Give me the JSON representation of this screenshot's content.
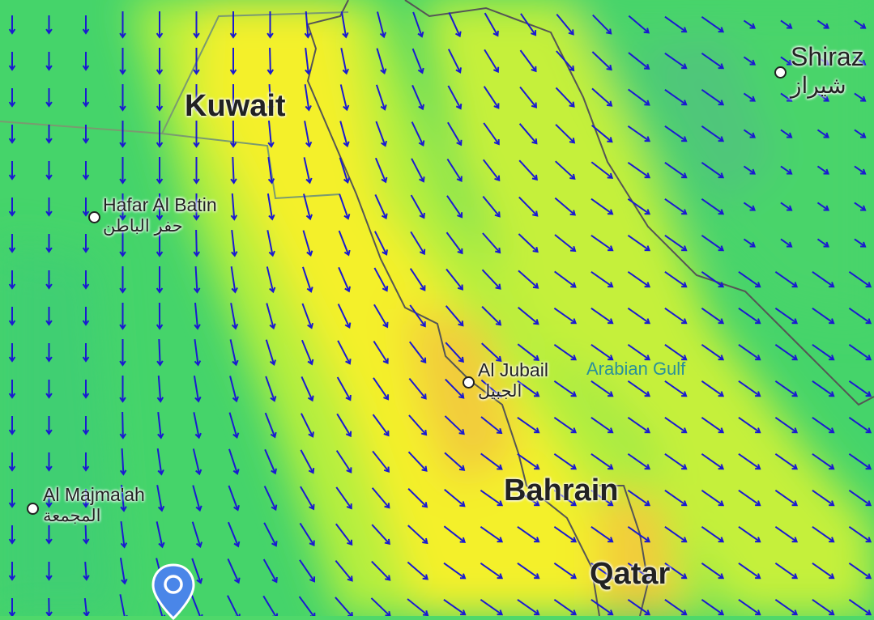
{
  "map": {
    "layer": "wind",
    "colors": {
      "low": "#3fd66a",
      "mid": "#b8f03a",
      "high": "#f6f02c",
      "peak": "#f2c53a",
      "arrow": "#1a1ad0",
      "border": "#555555"
    },
    "countries": [
      {
        "name": "Kuwait"
      },
      {
        "name": "Bahrain"
      },
      {
        "name": "Qatar"
      }
    ],
    "cities": [
      {
        "name": "Shiraz",
        "name_ar": "شيراز"
      },
      {
        "name": "Hafar Al Batin",
        "name_ar": "حفر الباطن"
      },
      {
        "name": "Al Jubail",
        "name_ar": "الجبيل"
      },
      {
        "name": "Al Majma'ah",
        "name_ar": "المجمعة"
      }
    ],
    "water": [
      {
        "name": "Arabian Gulf"
      }
    ],
    "marker": {
      "icon": "location-pin-icon",
      "color": "#4a86e8"
    }
  }
}
